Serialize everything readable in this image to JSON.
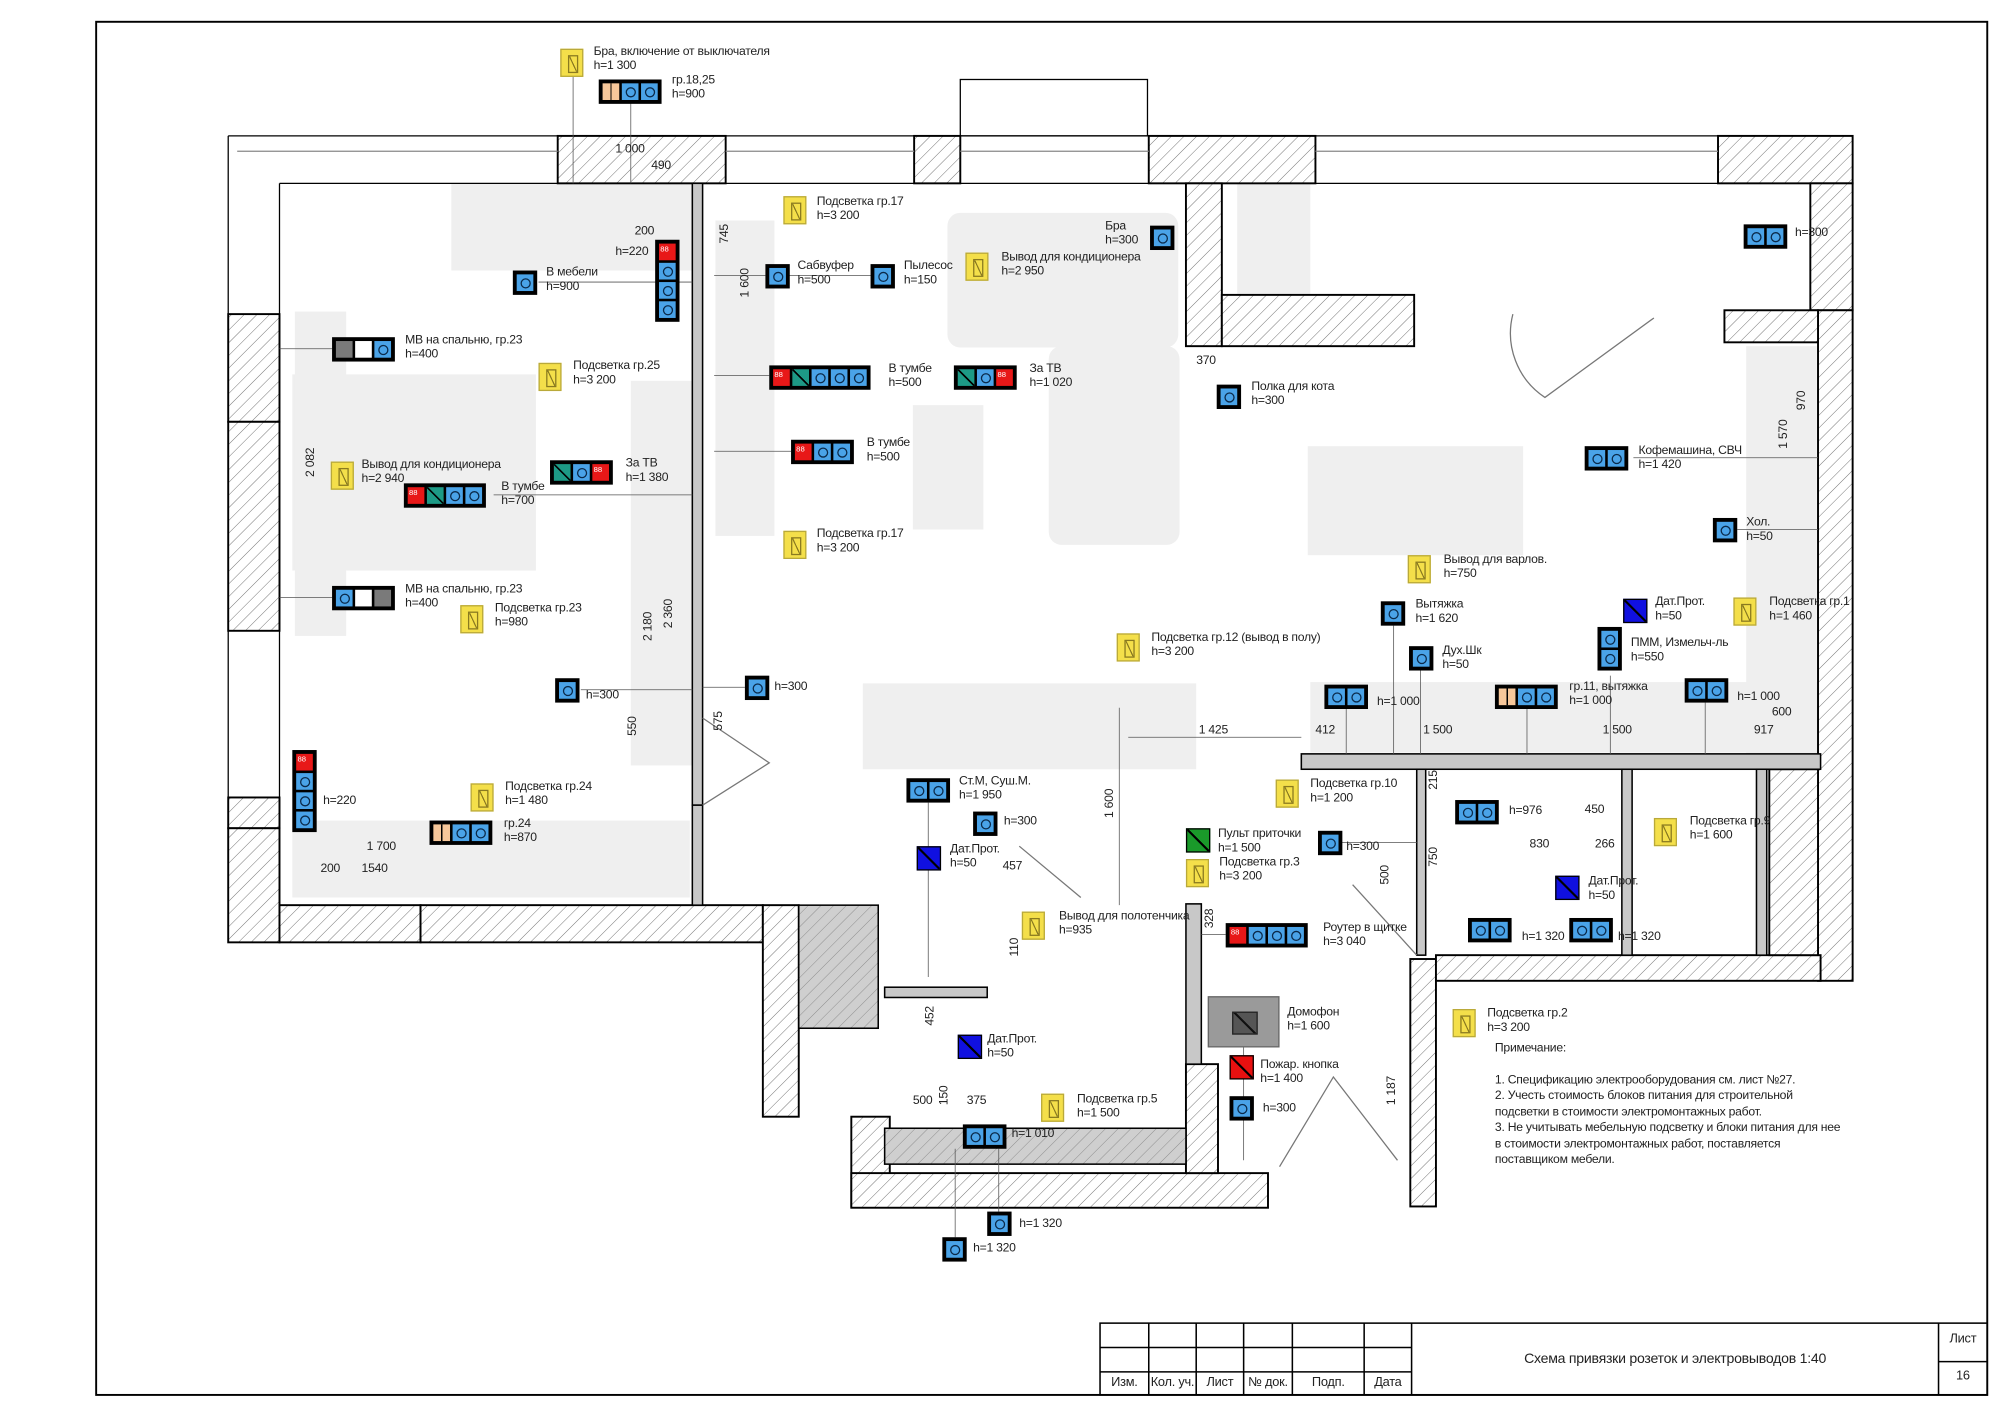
{
  "devices": [
    {
      "type": "light",
      "name": "Бра, включение от выключателя",
      "h": "h=1 300"
    },
    {
      "type": "box",
      "cells": [
        "switch",
        "socket",
        "socket"
      ],
      "name": "гр.18,25",
      "h": "h=900"
    },
    {
      "type": "vbox",
      "cells": [
        "data",
        "socket",
        "socket",
        "socket"
      ],
      "name": "",
      "h": "h=220",
      "left": true
    },
    {
      "type": "box",
      "cells": [
        "socket"
      ],
      "name": "В мебели",
      "h": "h=900"
    },
    {
      "type": "light",
      "name": "Подсветка гр.17",
      "h": "h=3 200"
    },
    {
      "type": "box",
      "cells": [
        "socket"
      ],
      "name": "Сабвуфер",
      "h": "h=500"
    },
    {
      "type": "box",
      "cells": [
        "socket"
      ],
      "name": "Пылесос",
      "h": "h=150"
    },
    {
      "type": "light",
      "name": "Вывод для кондиционера",
      "h": "h=2 950"
    },
    {
      "type": "box",
      "cells": [
        "socket"
      ],
      "name": "Бра",
      "h": "h=300",
      "left": true
    },
    {
      "type": "box",
      "cells": [
        "socket",
        "socket"
      ],
      "name": "",
      "h": "h=300"
    },
    {
      "type": "box",
      "cells": [
        "grey",
        "white",
        "socket"
      ],
      "name": "МВ на спальню, гр.23",
      "h": "h=400"
    },
    {
      "type": "light",
      "name": "Подсветка гр.25",
      "h": "h=3 200"
    },
    {
      "type": "box",
      "cells": [
        "data",
        "tv",
        "socket",
        "socket",
        "socket"
      ],
      "name": "В тумбе",
      "h": "h=500"
    },
    {
      "type": "box",
      "cells": [
        "tv",
        "socket",
        "data"
      ],
      "name": "За ТВ",
      "h": "h=1 020"
    },
    {
      "type": "box",
      "cells": [
        "socket"
      ],
      "name": "Полка для кота",
      "h": "h=300"
    },
    {
      "type": "box",
      "cells": [
        "data",
        "socket",
        "socket"
      ],
      "name": "В тумбе",
      "h": "h=500"
    },
    {
      "type": "light",
      "name": "Вывод для кондиционера",
      "h": "h=2 940"
    },
    {
      "type": "box",
      "cells": [
        "tv",
        "socket",
        "data"
      ],
      "name": "За ТВ",
      "h": "h=1 380"
    },
    {
      "type": "box",
      "cells": [
        "data",
        "tv",
        "socket",
        "socket"
      ],
      "name": "В тумбе",
      "h": "h=700"
    },
    {
      "type": "light",
      "name": "Подсветка гр.17",
      "h": "h=3 200"
    },
    {
      "type": "box",
      "cells": [
        "socket",
        "socket"
      ],
      "name": "Кофемашина, СВЧ",
      "h": "h=1 420"
    },
    {
      "type": "box",
      "cells": [
        "socket"
      ],
      "name": "Хол.",
      "h": "h=50"
    },
    {
      "type": "light",
      "name": "Вывод для варлов.",
      "h": "h=750"
    },
    {
      "type": "box",
      "cells": [
        "socket",
        "white",
        "grey"
      ],
      "name": "МВ на спальню, гр.23",
      "h": "h=400"
    },
    {
      "type": "light",
      "name": "Подсветка гр.23",
      "h": "h=980"
    },
    {
      "type": "box",
      "cells": [
        "socket"
      ],
      "name": "Вытяжка",
      "h": "h=1 620"
    },
    {
      "type": "sensor",
      "name": "Дат.Прот.",
      "h": "h=50"
    },
    {
      "type": "light",
      "name": "Подсветка гр.1",
      "h": "h=1 460"
    },
    {
      "type": "vbox",
      "cells": [
        "socket",
        "socket"
      ],
      "name": "ПММ, Измельч-ль",
      "h": "h=550"
    },
    {
      "type": "light",
      "name": "Подсветка гр.12 (вывод в полу)",
      "h": "h=3 200"
    },
    {
      "type": "box",
      "cells": [
        "socket"
      ],
      "name": "Дух.Шк",
      "h": "h=50"
    },
    {
      "type": "box",
      "cells": [
        "socket"
      ],
      "name": "",
      "h": "h=300"
    },
    {
      "type": "box",
      "cells": [
        "socket"
      ],
      "name": "",
      "h": "h=300"
    },
    {
      "type": "box",
      "cells": [
        "socket",
        "socket"
      ],
      "name": "",
      "h": "h=1 000"
    },
    {
      "type": "box",
      "cells": [
        "switch",
        "socket",
        "socket"
      ],
      "name": "гр.11, вытяжка",
      "h": "h=1 000"
    },
    {
      "type": "box",
      "cells": [
        "socket",
        "socket"
      ],
      "name": "",
      "h": "h=1 000"
    },
    {
      "type": "vbox",
      "cells": [
        "data",
        "socket",
        "socket",
        "socket"
      ],
      "name": "",
      "h": "h=220"
    },
    {
      "type": "light",
      "name": "Подсветка гр.24",
      "h": "h=1 480"
    },
    {
      "type": "box",
      "cells": [
        "switch",
        "socket",
        "socket"
      ],
      "name": "гр.24",
      "h": "h=870"
    },
    {
      "type": "box",
      "cells": [
        "socket",
        "socket"
      ],
      "name": "Ст.М, Суш.М.",
      "h": "h=1 950"
    },
    {
      "type": "box",
      "cells": [
        "socket"
      ],
      "name": "",
      "h": "h=300"
    },
    {
      "type": "light",
      "name": "Подсветка гр.10",
      "h": "h=1 200"
    },
    {
      "type": "box",
      "cells": [
        "socket",
        "socket"
      ],
      "name": "",
      "h": "h=976"
    },
    {
      "type": "light",
      "name": "Подсветка гр.9",
      "h": "h=1 600"
    },
    {
      "type": "green",
      "name": "Пульт приточки",
      "h": "h=1 500"
    },
    {
      "type": "box",
      "cells": [
        "socket"
      ],
      "name": "",
      "h": "h=300"
    },
    {
      "type": "sensor",
      "name": "Дат.Прот.",
      "h": "h=50"
    },
    {
      "type": "light",
      "name": "Подсветка гр.3",
      "h": "h=3 200"
    },
    {
      "type": "sensor",
      "name": "Дат.Прот.",
      "h": "h=50"
    },
    {
      "type": "light",
      "name": "Вывод для полотенчика",
      "h": "h=935"
    },
    {
      "type": "box",
      "cells": [
        "data",
        "socket",
        "socket",
        "socket"
      ],
      "name": "Роутер в щитке",
      "h": "h=3 040"
    },
    {
      "type": "box",
      "cells": [
        "socket",
        "socket"
      ],
      "name": "",
      "h": "h=1 320"
    },
    {
      "type": "box",
      "cells": [
        "socket",
        "socket"
      ],
      "name": "",
      "h": "h=1 320"
    },
    {
      "type": "intercom",
      "name": "Домофон",
      "h": "h=1 600"
    },
    {
      "type": "fire",
      "name": "Пожар. кнопка",
      "h": "h=1 400"
    },
    {
      "type": "box",
      "cells": [
        "socket"
      ],
      "name": "",
      "h": "h=300"
    },
    {
      "type": "light",
      "name": "Подсветка гр.2",
      "h": "h=3 200"
    },
    {
      "type": "sensor",
      "name": "Дат.Прот.",
      "h": "h=50"
    },
    {
      "type": "light",
      "name": "Подсветка гр.5",
      "h": "h=1 500"
    },
    {
      "type": "box",
      "cells": [
        "socket",
        "socket"
      ],
      "name": "",
      "h": "h=1 010"
    },
    {
      "type": "box",
      "cells": [
        "socket"
      ],
      "name": "",
      "h": "h=1 320"
    },
    {
      "type": "box",
      "cells": [
        "socket"
      ],
      "name": "",
      "h": "h=1 320"
    }
  ],
  "dimensions": [
    "1 000",
    "490",
    "200",
    "745",
    "1 600",
    "2 082",
    "2 180",
    "2 360",
    "550",
    "575",
    "370",
    "1 570",
    "970",
    "1 425",
    "412",
    "1 500",
    "1 500",
    "600",
    "917",
    "1 700",
    "200",
    "1540",
    "1 600",
    "457",
    "110",
    "328",
    "215",
    "750",
    "500",
    "830",
    "450",
    "266",
    "452",
    "500",
    "150",
    "375",
    "1 187"
  ],
  "notes": {
    "title": "Примечание:",
    "lines": [
      "1. Спецификацию электрооборудования см. лист №27.",
      "2. Учесть стоимость блоков питания для строительной",
      "подсветки в стоимости электромонтажных работ.",
      "3. Не учитывать мебельную подсветку и блоки питания для нее",
      "в стоимости электромонтажных работ, поставляется",
      "поставщиком мебели."
    ]
  },
  "title_block": {
    "columns": [
      "Изм.",
      "Кол. уч.",
      "Лист",
      "№ док.",
      "Подп.",
      "Дата"
    ],
    "title": "Схема привязки розеток и электровыводов 1:40",
    "sheet_label": "Лист",
    "sheet_number": "16"
  },
  "colors": {
    "socket": "#4aa3e8",
    "light": "#f4df4a",
    "data": "#e81818",
    "tv": "#1d9a86",
    "sensor": "#1010e0",
    "remote": "#1a9a2a",
    "fire_button": "#e81010",
    "wall_hatch": "#555555",
    "furniture": "#efefef"
  }
}
